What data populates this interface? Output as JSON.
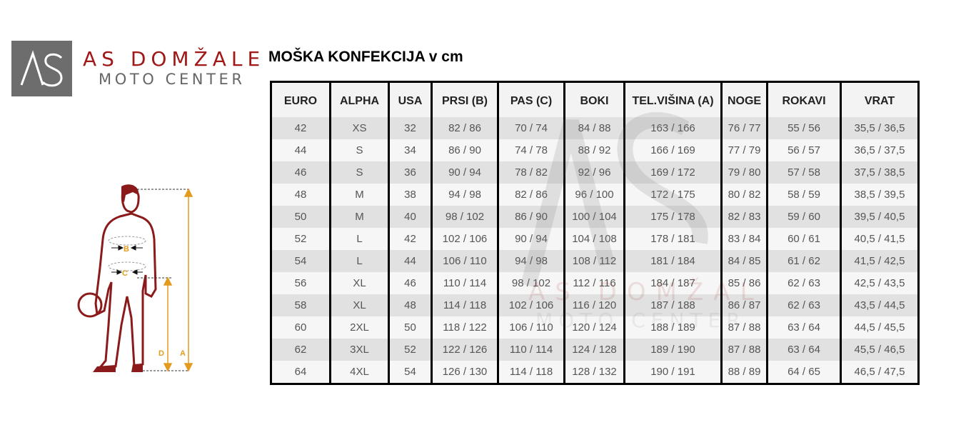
{
  "logo": {
    "mark": "AS",
    "name": "AS DOMŽALE",
    "subtitle": "MOTO CENTER"
  },
  "title": "MOŠKA KONFEKCIJA v cm",
  "figure": {
    "labels": {
      "b": "B",
      "c": "C",
      "d": "D",
      "a": "A"
    },
    "arrow_color": "#e39b1e",
    "body_color": "#8b1a1a"
  },
  "table": {
    "headers": [
      "EURO",
      "ALPHA",
      "USA",
      "PRSI (B)",
      "PAS (C)",
      "BOKI",
      "TEL.VIŠINA (A)",
      "NOGE",
      "ROKAVI",
      "VRAT"
    ],
    "rows": [
      [
        "42",
        "XS",
        "32",
        "82 / 86",
        "70 / 74",
        "84 / 88",
        "163 / 166",
        "76 / 77",
        "55 / 56",
        "35,5 / 36,5"
      ],
      [
        "44",
        "S",
        "34",
        "86 / 90",
        "74 / 78",
        "88 / 92",
        "166 / 169",
        "77 / 79",
        "56 / 57",
        "36,5 / 37,5"
      ],
      [
        "46",
        "S",
        "36",
        "90 / 94",
        "78 / 82",
        "92 / 96",
        "169 / 172",
        "79 / 80",
        "57 / 58",
        "37,5 / 38,5"
      ],
      [
        "48",
        "M",
        "38",
        "94 / 98",
        "82 / 86",
        "96 / 100",
        "172 / 175",
        "80 / 82",
        "58 / 59",
        "38,5 / 39,5"
      ],
      [
        "50",
        "M",
        "40",
        "98 / 102",
        "86 / 90",
        "100 / 104",
        "175 / 178",
        "82 / 83",
        "59 / 60",
        "39,5 / 40,5"
      ],
      [
        "52",
        "L",
        "42",
        "102 / 106",
        "90 / 94",
        "104 / 108",
        "178 / 181",
        "83 / 84",
        "60 / 61",
        "40,5 / 41,5"
      ],
      [
        "54",
        "L",
        "44",
        "106 / 110",
        "94 / 98",
        "108 / 112",
        "181 / 184",
        "84 / 85",
        "61 / 62",
        "41,5 / 42,5"
      ],
      [
        "56",
        "XL",
        "46",
        "110 / 114",
        "98 / 102",
        "112 / 116",
        "184 / 187",
        "85 / 86",
        "62 / 63",
        "42,5 / 43,5"
      ],
      [
        "58",
        "XL",
        "48",
        "114 / 118",
        "102 / 106",
        "116 / 120",
        "187 / 188",
        "86 / 87",
        "62 / 63",
        "43,5 / 44,5"
      ],
      [
        "60",
        "2XL",
        "50",
        "118 / 122",
        "106 / 110",
        "120 / 124",
        "188 / 189",
        "87 / 88",
        "63 / 64",
        "44,5 / 45,5"
      ],
      [
        "62",
        "3XL",
        "52",
        "122 / 126",
        "110 / 114",
        "124 / 128",
        "189 / 190",
        "87 / 88",
        "63 / 64",
        "45,5 / 46,5"
      ],
      [
        "64",
        "4XL",
        "54",
        "126 / 130",
        "114 / 118",
        "128 / 132",
        "190 / 191",
        "88 / 89",
        "64 / 65",
        "46,5 / 47,5"
      ]
    ]
  }
}
